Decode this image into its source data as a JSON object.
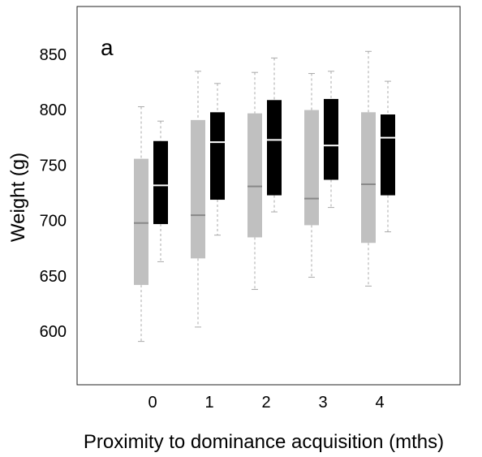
{
  "chart_data": {
    "type": "boxplot",
    "panel_label": "a",
    "xlabel": "Proximity to dominance acquisition (mths)",
    "ylabel": "Weight (g)",
    "categories": [
      "0",
      "1",
      "2",
      "3",
      "4"
    ],
    "y_ticks": [
      "600",
      "650",
      "700",
      "750",
      "800",
      "850"
    ],
    "ylim": [
      550,
      885
    ],
    "grid": false,
    "legend": "none",
    "series": [
      {
        "color": "#c0c0c0",
        "median_color": "#888888",
        "boxes": [
          {
            "min": 590,
            "q1": 641,
            "median": 697,
            "q3": 755,
            "max": 802
          },
          {
            "min": 603,
            "q1": 665,
            "median": 704,
            "q3": 790,
            "max": 834
          },
          {
            "min": 637,
            "q1": 684,
            "median": 730,
            "q3": 796,
            "max": 833
          },
          {
            "min": 648,
            "q1": 695,
            "median": 719,
            "q3": 799,
            "max": 832
          },
          {
            "min": 640,
            "q1": 679,
            "median": 732,
            "q3": 797,
            "max": 852
          }
        ]
      },
      {
        "color": "#000000",
        "median_color": "#ffffff",
        "boxes": [
          {
            "min": 662,
            "q1": 696,
            "median": 731,
            "q3": 771,
            "max": 789
          },
          {
            "min": 686,
            "q1": 718,
            "median": 770,
            "q3": 797,
            "max": 823
          },
          {
            "min": 707,
            "q1": 722,
            "median": 772,
            "q3": 808,
            "max": 846
          },
          {
            "min": 711,
            "q1": 736,
            "median": 767,
            "q3": 809,
            "max": 834
          },
          {
            "min": 689,
            "q1": 722,
            "median": 774,
            "q3": 795,
            "max": 825
          }
        ]
      }
    ]
  }
}
